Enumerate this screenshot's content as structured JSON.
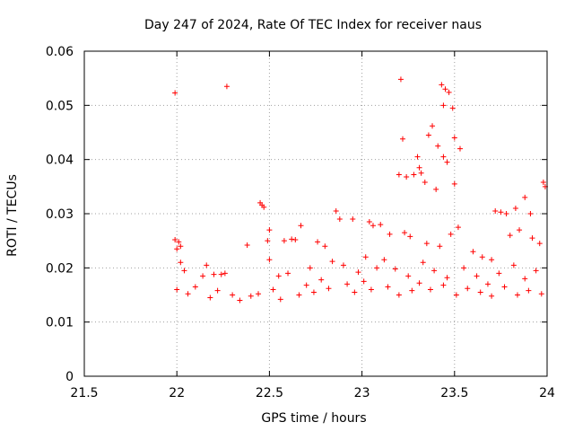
{
  "chart_data": {
    "type": "scatter",
    "title": "Day 247 of 2024, Rate Of TEC Index for receiver naus",
    "xlabel": "GPS time / hours",
    "ylabel": "ROTI / TECUs",
    "xlim": [
      21.5,
      24
    ],
    "ylim": [
      0,
      0.06
    ],
    "xticks": [
      "21.5",
      "22",
      "22.5",
      "23",
      "23.5",
      "24"
    ],
    "yticks": [
      "0",
      "0.01",
      "0.02",
      "0.03",
      "0.04",
      "0.05",
      "0.06"
    ],
    "grid": true,
    "marker": "+",
    "color": "#ff0000",
    "series": [
      {
        "name": "ROTI",
        "points": [
          [
            21.99,
            0.0523
          ],
          [
            22.27,
            0.0535
          ],
          [
            23.21,
            0.0548
          ],
          [
            23.43,
            0.0538
          ],
          [
            23.45,
            0.053
          ],
          [
            23.47,
            0.0524
          ],
          [
            23.49,
            0.0495
          ],
          [
            23.44,
            0.05
          ],
          [
            23.38,
            0.0462
          ],
          [
            23.36,
            0.0445
          ],
          [
            23.41,
            0.0425
          ],
          [
            23.22,
            0.0438
          ],
          [
            23.44,
            0.0405
          ],
          [
            23.5,
            0.044
          ],
          [
            23.53,
            0.042
          ],
          [
            23.46,
            0.0395
          ],
          [
            23.3,
            0.0405
          ],
          [
            23.31,
            0.0385
          ],
          [
            23.2,
            0.0372
          ],
          [
            23.24,
            0.0368
          ],
          [
            23.28,
            0.0372
          ],
          [
            23.32,
            0.0375
          ],
          [
            23.34,
            0.0358
          ],
          [
            23.4,
            0.0345
          ],
          [
            23.5,
            0.0355
          ],
          [
            23.98,
            0.0358
          ],
          [
            23.99,
            0.035
          ],
          [
            23.88,
            0.033
          ],
          [
            23.75,
            0.0303
          ],
          [
            23.72,
            0.0305
          ],
          [
            23.78,
            0.03
          ],
          [
            23.83,
            0.031
          ],
          [
            23.91,
            0.03
          ],
          [
            22.45,
            0.032
          ],
          [
            22.46,
            0.0316
          ],
          [
            22.47,
            0.0312
          ],
          [
            22.38,
            0.0242
          ],
          [
            22.5,
            0.027
          ],
          [
            22.49,
            0.025
          ],
          [
            22.01,
            0.0248
          ],
          [
            21.99,
            0.0252
          ],
          [
            22.02,
            0.024
          ],
          [
            22.0,
            0.0235
          ],
          [
            22.67,
            0.0278
          ],
          [
            22.86,
            0.0305
          ],
          [
            22.88,
            0.029
          ],
          [
            22.58,
            0.025
          ],
          [
            22.62,
            0.0253
          ],
          [
            22.64,
            0.0252
          ],
          [
            22.76,
            0.0248
          ],
          [
            22.8,
            0.024
          ],
          [
            22.95,
            0.029
          ],
          [
            23.04,
            0.0285
          ],
          [
            23.06,
            0.0278
          ],
          [
            23.1,
            0.028
          ],
          [
            23.15,
            0.0262
          ],
          [
            23.23,
            0.0265
          ],
          [
            23.26,
            0.0258
          ],
          [
            23.35,
            0.0245
          ],
          [
            23.42,
            0.024
          ],
          [
            23.48,
            0.0262
          ],
          [
            23.52,
            0.0275
          ],
          [
            23.6,
            0.023
          ],
          [
            23.65,
            0.022
          ],
          [
            23.7,
            0.0215
          ],
          [
            23.8,
            0.026
          ],
          [
            23.85,
            0.027
          ],
          [
            23.92,
            0.0255
          ],
          [
            23.96,
            0.0245
          ],
          [
            22.02,
            0.021
          ],
          [
            22.04,
            0.0195
          ],
          [
            22.14,
            0.0185
          ],
          [
            22.16,
            0.0205
          ],
          [
            22.2,
            0.0188
          ],
          [
            22.24,
            0.0188
          ],
          [
            22.26,
            0.019
          ],
          [
            22.5,
            0.0215
          ],
          [
            22.55,
            0.0185
          ],
          [
            22.6,
            0.019
          ],
          [
            22.72,
            0.02
          ],
          [
            22.78,
            0.0178
          ],
          [
            22.84,
            0.0212
          ],
          [
            22.9,
            0.0205
          ],
          [
            22.98,
            0.0192
          ],
          [
            23.02,
            0.022
          ],
          [
            23.08,
            0.02
          ],
          [
            23.12,
            0.0215
          ],
          [
            23.18,
            0.0198
          ],
          [
            23.25,
            0.0185
          ],
          [
            23.33,
            0.021
          ],
          [
            23.39,
            0.0195
          ],
          [
            23.46,
            0.0182
          ],
          [
            23.55,
            0.02
          ],
          [
            23.62,
            0.0185
          ],
          [
            23.68,
            0.017
          ],
          [
            23.74,
            0.019
          ],
          [
            23.82,
            0.0205
          ],
          [
            23.88,
            0.018
          ],
          [
            23.94,
            0.0195
          ],
          [
            22.0,
            0.016
          ],
          [
            22.06,
            0.0152
          ],
          [
            22.1,
            0.0165
          ],
          [
            22.18,
            0.0145
          ],
          [
            22.22,
            0.0158
          ],
          [
            22.3,
            0.015
          ],
          [
            22.34,
            0.014
          ],
          [
            22.4,
            0.0148
          ],
          [
            22.44,
            0.0152
          ],
          [
            22.52,
            0.016
          ],
          [
            22.56,
            0.0142
          ],
          [
            22.66,
            0.015
          ],
          [
            22.7,
            0.0168
          ],
          [
            22.74,
            0.0155
          ],
          [
            22.82,
            0.0162
          ],
          [
            22.92,
            0.017
          ],
          [
            22.96,
            0.0155
          ],
          [
            23.01,
            0.0175
          ],
          [
            23.05,
            0.016
          ],
          [
            23.14,
            0.0165
          ],
          [
            23.2,
            0.015
          ],
          [
            23.27,
            0.0158
          ],
          [
            23.31,
            0.0172
          ],
          [
            23.37,
            0.016
          ],
          [
            23.44,
            0.0168
          ],
          [
            23.51,
            0.015
          ],
          [
            23.57,
            0.0162
          ],
          [
            23.64,
            0.0155
          ],
          [
            23.7,
            0.0148
          ],
          [
            23.77,
            0.0165
          ],
          [
            23.84,
            0.015
          ],
          [
            23.9,
            0.0158
          ],
          [
            23.97,
            0.0152
          ]
        ]
      }
    ]
  }
}
